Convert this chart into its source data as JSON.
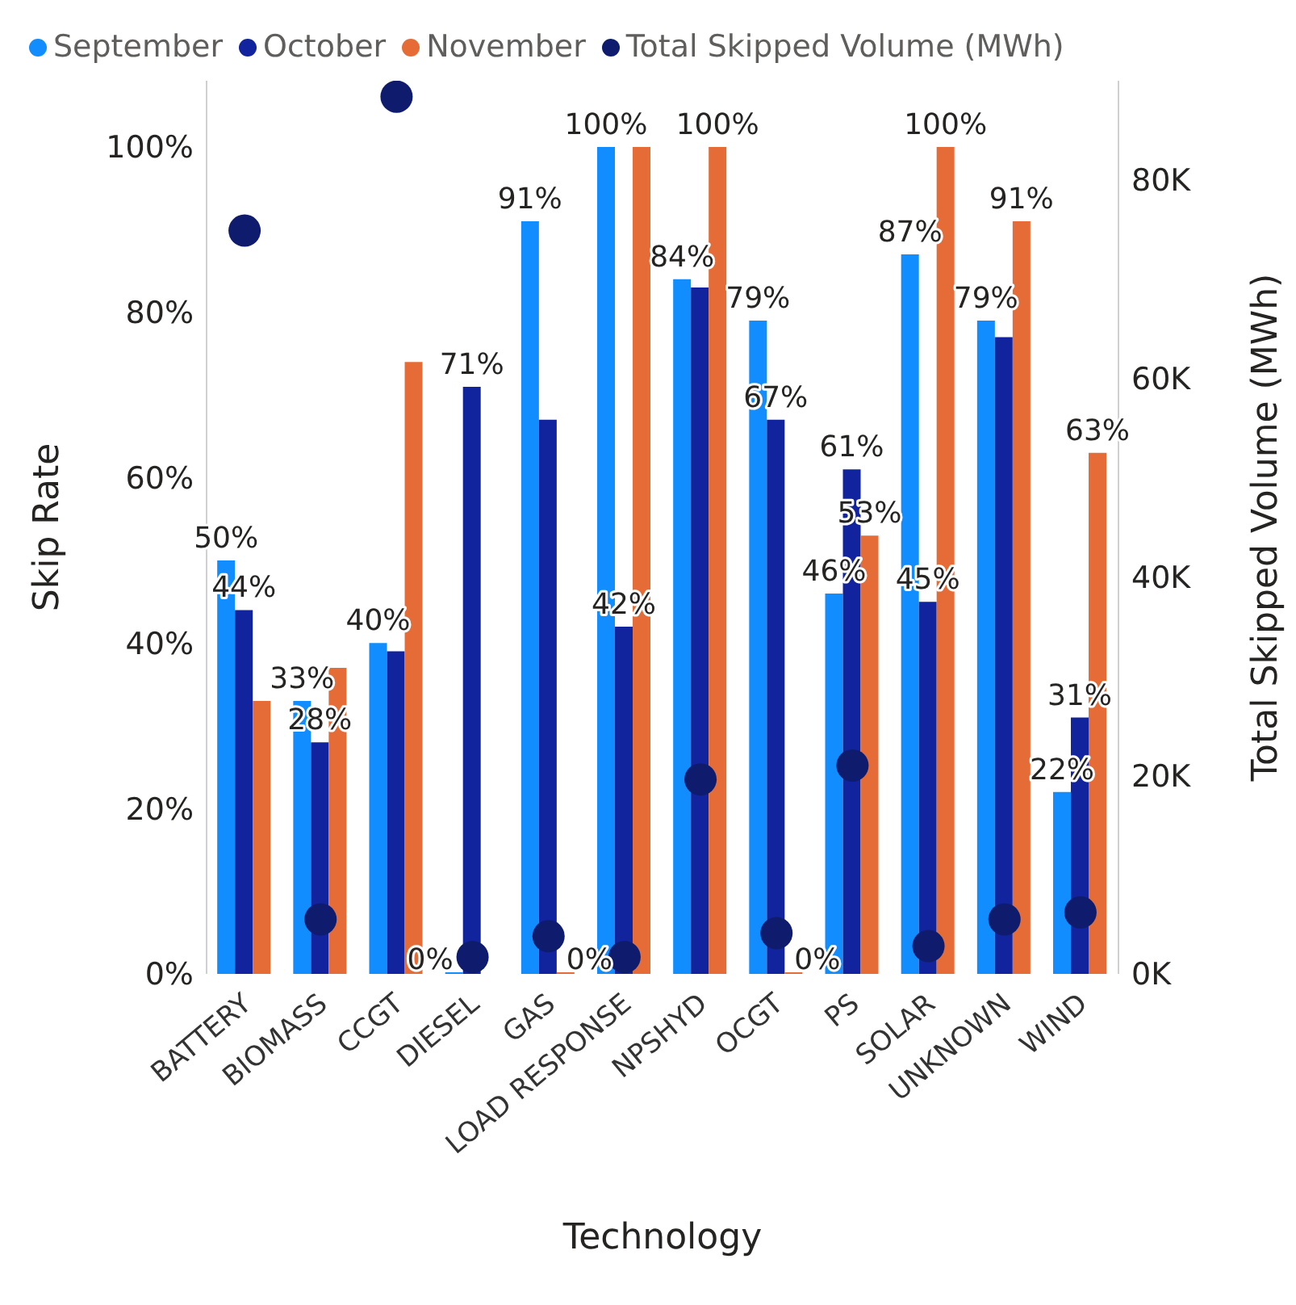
{
  "chart_data": {
    "type": "bar",
    "xlabel": "Technology",
    "ylabel": "Skip Rate",
    "y2label": "Total Skipped Volume (MWh)",
    "categories": [
      "BATTERY",
      "BIOMASS",
      "CCGT",
      "DIESEL",
      "GAS",
      "LOAD RESPONSE",
      "NPSHYD",
      "OCGT",
      "PS",
      "SOLAR",
      "UNKNOWN",
      "WIND"
    ],
    "series": [
      {
        "name": "September",
        "color": "#118dff",
        "values": [
          50,
          33,
          40,
          0,
          91,
          100,
          84,
          79,
          46,
          87,
          79,
          22
        ],
        "value_labels": [
          "50%",
          "33%",
          "40%",
          "0%",
          "91%",
          "100%",
          "84%",
          "79%",
          "46%",
          "87%",
          "79%",
          "22%"
        ]
      },
      {
        "name": "October",
        "color": "#12239e",
        "values": [
          44,
          28,
          39,
          71,
          67,
          42,
          83,
          67,
          61,
          45,
          77,
          31
        ],
        "value_labels": [
          "44%",
          "28%",
          null,
          "71%",
          null,
          "42%",
          null,
          "67%",
          "61%",
          "45%",
          null,
          "31%"
        ]
      },
      {
        "name": "November",
        "color": "#e66c37",
        "values": [
          33,
          37,
          74,
          null,
          0,
          100,
          100,
          0,
          53,
          100,
          91,
          63
        ],
        "value_labels": [
          null,
          null,
          null,
          null,
          "0%",
          null,
          "100%",
          "0%",
          "53%",
          "100%",
          "91%",
          "63%"
        ]
      },
      {
        "name": "Total Skipped Volume (MWh)",
        "type": "scatter",
        "axis": "y2",
        "color": "#0f1c6e",
        "values": [
          74900,
          5500,
          88400,
          1700,
          3800,
          1700,
          19600,
          4100,
          21000,
          2800,
          5500,
          6200
        ]
      }
    ],
    "ylim": [
      0,
      108
    ],
    "yticks": [
      {
        "value": 0,
        "label": "0%"
      },
      {
        "value": 20,
        "label": "20%"
      },
      {
        "value": 40,
        "label": "40%"
      },
      {
        "value": 60,
        "label": "60%"
      },
      {
        "value": 80,
        "label": "80%"
      },
      {
        "value": 100,
        "label": "100%"
      }
    ],
    "y2lim": [
      0,
      90000
    ],
    "y2ticks": [
      {
        "value": 0,
        "label": "0K"
      },
      {
        "value": 20000,
        "label": "20K"
      },
      {
        "value": 40000,
        "label": "40K"
      },
      {
        "value": 60000,
        "label": "60K"
      },
      {
        "value": 80000,
        "label": "80K"
      }
    ],
    "grid": false,
    "legend": "top left",
    "marker": "circle"
  }
}
